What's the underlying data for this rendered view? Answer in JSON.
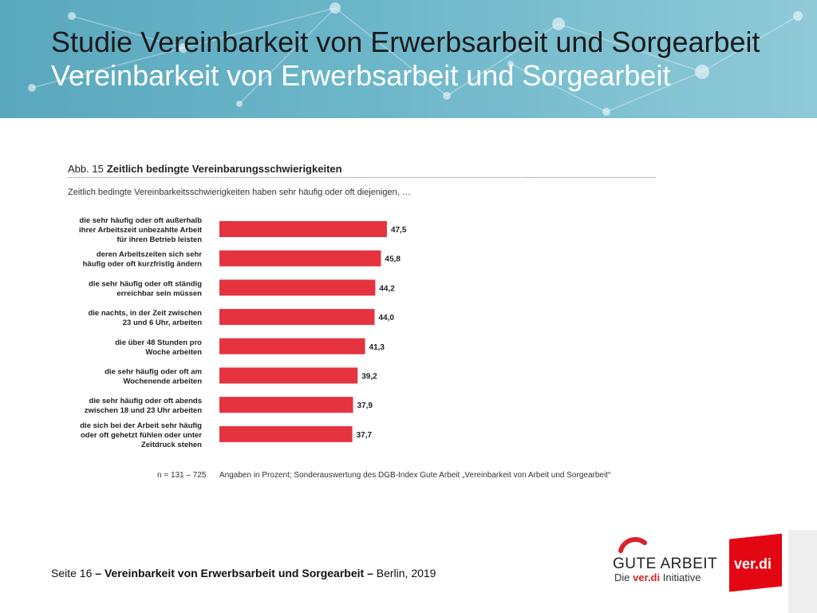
{
  "slide": {
    "title_line1": "Studie Vereinbarkeit von Erwerbsarbeit und Sorgearbeit",
    "title_line2": "Vereinbarkeit von Erwerbsarbeit und Sorgearbeit",
    "colors": {
      "banner": "#6cb6c9",
      "bar": "#e63340"
    }
  },
  "figure": {
    "abb_label": "Abb. 15",
    "abb_title": "Zeitlich bedingte Vereinbarungsschwierigkeiten",
    "lead": "Zeitlich bedingte Vereinbarkeitsschwierigkeiten haben sehr häufig oder oft diejenigen, …",
    "n_note": "n = 131 – 725",
    "source": "Angaben in Prozent; Sonderauswertung des DGB-Index Gute Arbeit „Vereinbarkeit von Arbeit und Sorgearbeit“"
  },
  "chart_data": {
    "type": "bar",
    "orientation": "horizontal",
    "categories": [
      [
        "die sehr häufig oder oft außerhalb",
        "ihrer Arbeitszeit unbezahlte Arbeit",
        "für ihren Betrieb leisten"
      ],
      [
        "deren Arbeitszeiten sich sehr",
        "häufig oder oft kurzfristig ändern"
      ],
      [
        "die sehr häufig oder oft ständig",
        "erreichbar sein müssen"
      ],
      [
        "die nachts, in der Zeit zwischen",
        "23 und 6 Uhr, arbeiten"
      ],
      [
        "die über 48 Stunden pro",
        "Woche arbeiten"
      ],
      [
        "die sehr häufig oder oft am",
        "Wochenende arbeiten"
      ],
      [
        "die sehr häufig oder oft abends",
        "zwischen 18 und 23 Uhr arbeiten"
      ],
      [
        "die sich bei der Arbeit sehr häufig",
        "oder oft gehetzt fühlen oder unter",
        "Zeitdruck stehen"
      ]
    ],
    "values": [
      47.5,
      45.8,
      44.2,
      44.0,
      41.3,
      39.2,
      37.9,
      37.7
    ],
    "value_labels": [
      "47,5",
      "45,8",
      "44,2",
      "44,0",
      "41,3",
      "39,2",
      "37,9",
      "37,7"
    ],
    "unit": "Prozent",
    "xlim": [
      0,
      100
    ],
    "grid": false,
    "legend": "none"
  },
  "footer": {
    "page": "Seite 16",
    "sep": "–",
    "topic": "Vereinbarkeit von Erwerbsarbeit und Sorgearbeit",
    "place_year": "Berlin, 2019"
  },
  "logos": {
    "gute_arbeit": "GUTE ARBEIT",
    "ga_die": "Die",
    "ga_verdi": "ver.di",
    "ga_initiative": "Initiative",
    "verdi": "ver.di"
  }
}
